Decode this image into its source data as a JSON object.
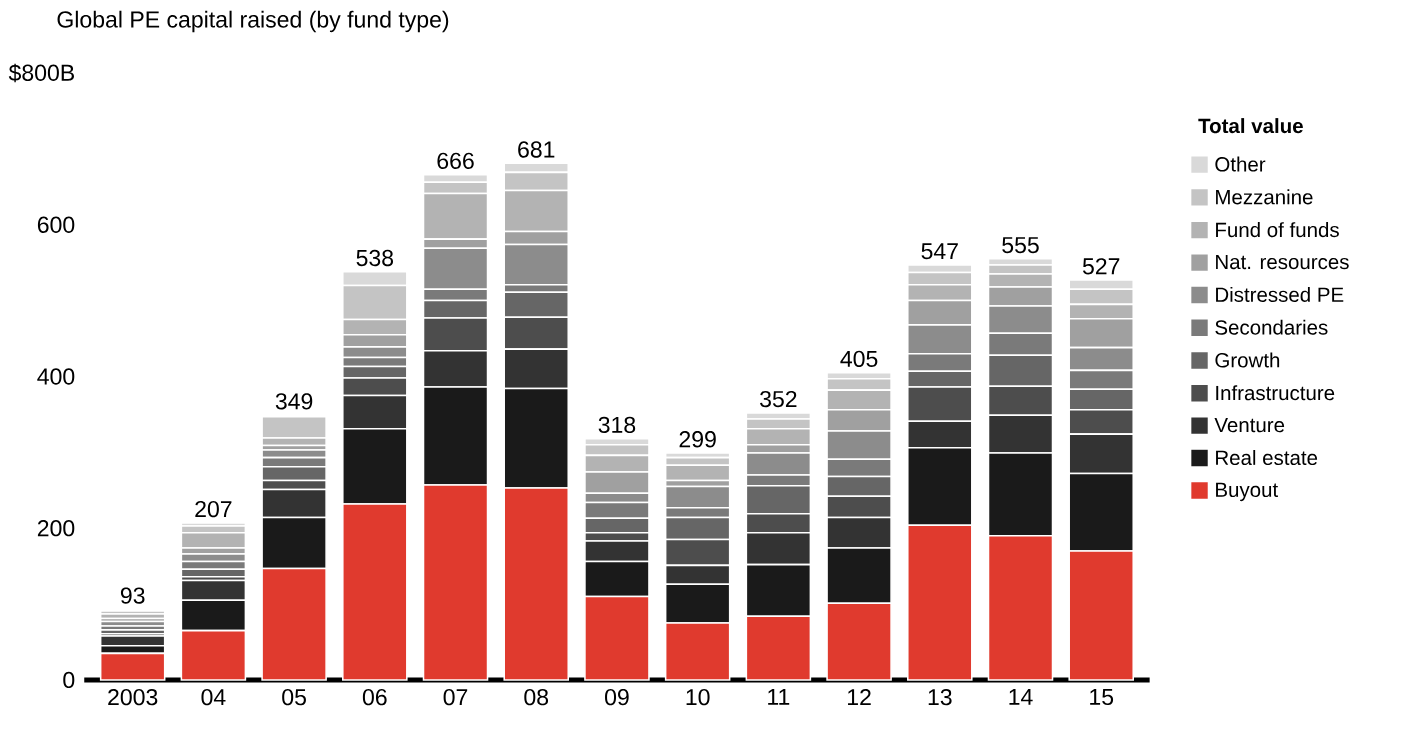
{
  "chart_data": {
    "type": "bar",
    "stacked": true,
    "title": "Global PE capital raised (by fund type)",
    "legend_title": "Total value",
    "legend": "right",
    "categories": [
      "2003",
      "04",
      "05",
      "06",
      "07",
      "08",
      "09",
      "10",
      "11",
      "12",
      "13",
      "14",
      "15"
    ],
    "ylim": [
      0,
      800
    ],
    "yticks": [
      0,
      200,
      400,
      600,
      {
        "value": 800,
        "label": "$800B"
      }
    ],
    "grid": false,
    "totals": [
      "93",
      "207",
      "349",
      "538",
      "666",
      "681",
      "318",
      "299",
      "352",
      "405",
      "547",
      "555",
      "527"
    ],
    "series": [
      {
        "name": "Buyout",
        "color": "#e03a2e",
        "values": [
          35,
          65,
          147,
          232,
          257,
          253,
          110,
          75,
          84,
          101,
          204,
          190,
          170
        ]
      },
      {
        "name": "Real estate",
        "color": "#1a1a1a",
        "values": [
          10,
          40,
          67,
          99,
          129,
          131,
          46,
          51,
          68,
          73,
          102,
          109,
          102
        ]
      },
      {
        "name": "Venture",
        "color": "#333333",
        "values": [
          13,
          26,
          37,
          44,
          48,
          52,
          27,
          25,
          42,
          40,
          35,
          50,
          52
        ]
      },
      {
        "name": "Infrastructure",
        "color": "#4d4d4d",
        "values": [
          3,
          5,
          12,
          23,
          43,
          42,
          11,
          34,
          25,
          28,
          45,
          38,
          32
        ]
      },
      {
        "name": "Growth",
        "color": "#666666",
        "values": [
          5,
          10,
          18,
          15,
          23,
          33,
          19,
          29,
          37,
          26,
          21,
          41,
          27
        ]
      },
      {
        "name": "Secondaries",
        "color": "#7a7a7a",
        "values": [
          5,
          10,
          12,
          12,
          15,
          10,
          21,
          13,
          14,
          23,
          23,
          29,
          25
        ]
      },
      {
        "name": "Distressed PE",
        "color": "#8c8c8c",
        "values": [
          6,
          10,
          10,
          14,
          54,
          53,
          12,
          28,
          29,
          37,
          38,
          36,
          30
        ]
      },
      {
        "name": "Nat. resources",
        "color": "#a0a0a0",
        "values": [
          4,
          8,
          6,
          16,
          12,
          17,
          28,
          8,
          11,
          28,
          32,
          25,
          38
        ]
      },
      {
        "name": "Fund of funds",
        "color": "#b3b3b3",
        "values": [
          6,
          20,
          10,
          20,
          60,
          54,
          22,
          20,
          21,
          26,
          21,
          17,
          19
        ]
      },
      {
        "name": "Mezzanine",
        "color": "#c4c4c4",
        "values": [
          4,
          9,
          28,
          45,
          15,
          24,
          14,
          10,
          13,
          15,
          16,
          12,
          20
        ]
      },
      {
        "name": "Other",
        "color": "#d9d9d9",
        "values": [
          2,
          4,
          2,
          18,
          10,
          12,
          8,
          6,
          8,
          8,
          10,
          8,
          12
        ]
      }
    ]
  }
}
